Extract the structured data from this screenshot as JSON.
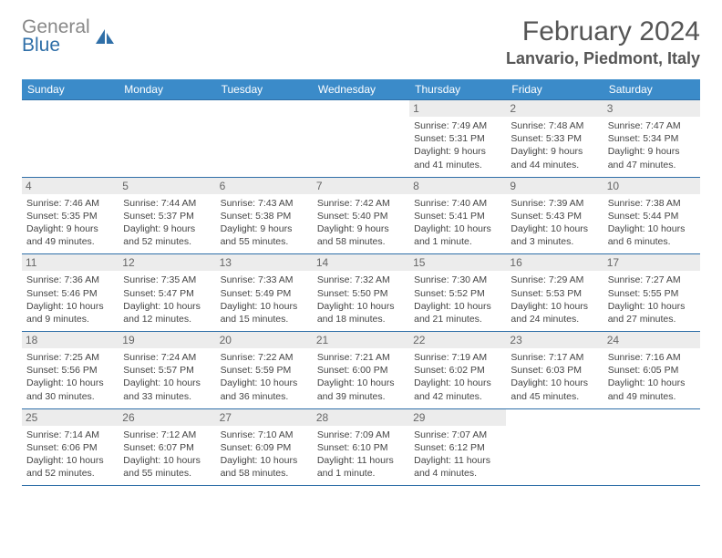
{
  "logo": {
    "textA": "General",
    "textB": "Blue"
  },
  "title": "February 2024",
  "location": "Lanvario, Piedmont, Italy",
  "colors": {
    "header_bg": "#3b8bc9",
    "header_text": "#ffffff",
    "daynum_bg": "#ececec",
    "border": "#2f6fa8",
    "logo_gray": "#888888",
    "logo_blue": "#2f6fa8"
  },
  "day_headers": [
    "Sunday",
    "Monday",
    "Tuesday",
    "Wednesday",
    "Thursday",
    "Friday",
    "Saturday"
  ],
  "weeks": [
    [
      {
        "n": "",
        "sr": "",
        "ss": "",
        "dl": ""
      },
      {
        "n": "",
        "sr": "",
        "ss": "",
        "dl": ""
      },
      {
        "n": "",
        "sr": "",
        "ss": "",
        "dl": ""
      },
      {
        "n": "",
        "sr": "",
        "ss": "",
        "dl": ""
      },
      {
        "n": "1",
        "sr": "Sunrise: 7:49 AM",
        "ss": "Sunset: 5:31 PM",
        "dl": "Daylight: 9 hours and 41 minutes."
      },
      {
        "n": "2",
        "sr": "Sunrise: 7:48 AM",
        "ss": "Sunset: 5:33 PM",
        "dl": "Daylight: 9 hours and 44 minutes."
      },
      {
        "n": "3",
        "sr": "Sunrise: 7:47 AM",
        "ss": "Sunset: 5:34 PM",
        "dl": "Daylight: 9 hours and 47 minutes."
      }
    ],
    [
      {
        "n": "4",
        "sr": "Sunrise: 7:46 AM",
        "ss": "Sunset: 5:35 PM",
        "dl": "Daylight: 9 hours and 49 minutes."
      },
      {
        "n": "5",
        "sr": "Sunrise: 7:44 AM",
        "ss": "Sunset: 5:37 PM",
        "dl": "Daylight: 9 hours and 52 minutes."
      },
      {
        "n": "6",
        "sr": "Sunrise: 7:43 AM",
        "ss": "Sunset: 5:38 PM",
        "dl": "Daylight: 9 hours and 55 minutes."
      },
      {
        "n": "7",
        "sr": "Sunrise: 7:42 AM",
        "ss": "Sunset: 5:40 PM",
        "dl": "Daylight: 9 hours and 58 minutes."
      },
      {
        "n": "8",
        "sr": "Sunrise: 7:40 AM",
        "ss": "Sunset: 5:41 PM",
        "dl": "Daylight: 10 hours and 1 minute."
      },
      {
        "n": "9",
        "sr": "Sunrise: 7:39 AM",
        "ss": "Sunset: 5:43 PM",
        "dl": "Daylight: 10 hours and 3 minutes."
      },
      {
        "n": "10",
        "sr": "Sunrise: 7:38 AM",
        "ss": "Sunset: 5:44 PM",
        "dl": "Daylight: 10 hours and 6 minutes."
      }
    ],
    [
      {
        "n": "11",
        "sr": "Sunrise: 7:36 AM",
        "ss": "Sunset: 5:46 PM",
        "dl": "Daylight: 10 hours and 9 minutes."
      },
      {
        "n": "12",
        "sr": "Sunrise: 7:35 AM",
        "ss": "Sunset: 5:47 PM",
        "dl": "Daylight: 10 hours and 12 minutes."
      },
      {
        "n": "13",
        "sr": "Sunrise: 7:33 AM",
        "ss": "Sunset: 5:49 PM",
        "dl": "Daylight: 10 hours and 15 minutes."
      },
      {
        "n": "14",
        "sr": "Sunrise: 7:32 AM",
        "ss": "Sunset: 5:50 PM",
        "dl": "Daylight: 10 hours and 18 minutes."
      },
      {
        "n": "15",
        "sr": "Sunrise: 7:30 AM",
        "ss": "Sunset: 5:52 PM",
        "dl": "Daylight: 10 hours and 21 minutes."
      },
      {
        "n": "16",
        "sr": "Sunrise: 7:29 AM",
        "ss": "Sunset: 5:53 PM",
        "dl": "Daylight: 10 hours and 24 minutes."
      },
      {
        "n": "17",
        "sr": "Sunrise: 7:27 AM",
        "ss": "Sunset: 5:55 PM",
        "dl": "Daylight: 10 hours and 27 minutes."
      }
    ],
    [
      {
        "n": "18",
        "sr": "Sunrise: 7:25 AM",
        "ss": "Sunset: 5:56 PM",
        "dl": "Daylight: 10 hours and 30 minutes."
      },
      {
        "n": "19",
        "sr": "Sunrise: 7:24 AM",
        "ss": "Sunset: 5:57 PM",
        "dl": "Daylight: 10 hours and 33 minutes."
      },
      {
        "n": "20",
        "sr": "Sunrise: 7:22 AM",
        "ss": "Sunset: 5:59 PM",
        "dl": "Daylight: 10 hours and 36 minutes."
      },
      {
        "n": "21",
        "sr": "Sunrise: 7:21 AM",
        "ss": "Sunset: 6:00 PM",
        "dl": "Daylight: 10 hours and 39 minutes."
      },
      {
        "n": "22",
        "sr": "Sunrise: 7:19 AM",
        "ss": "Sunset: 6:02 PM",
        "dl": "Daylight: 10 hours and 42 minutes."
      },
      {
        "n": "23",
        "sr": "Sunrise: 7:17 AM",
        "ss": "Sunset: 6:03 PM",
        "dl": "Daylight: 10 hours and 45 minutes."
      },
      {
        "n": "24",
        "sr": "Sunrise: 7:16 AM",
        "ss": "Sunset: 6:05 PM",
        "dl": "Daylight: 10 hours and 49 minutes."
      }
    ],
    [
      {
        "n": "25",
        "sr": "Sunrise: 7:14 AM",
        "ss": "Sunset: 6:06 PM",
        "dl": "Daylight: 10 hours and 52 minutes."
      },
      {
        "n": "26",
        "sr": "Sunrise: 7:12 AM",
        "ss": "Sunset: 6:07 PM",
        "dl": "Daylight: 10 hours and 55 minutes."
      },
      {
        "n": "27",
        "sr": "Sunrise: 7:10 AM",
        "ss": "Sunset: 6:09 PM",
        "dl": "Daylight: 10 hours and 58 minutes."
      },
      {
        "n": "28",
        "sr": "Sunrise: 7:09 AM",
        "ss": "Sunset: 6:10 PM",
        "dl": "Daylight: 11 hours and 1 minute."
      },
      {
        "n": "29",
        "sr": "Sunrise: 7:07 AM",
        "ss": "Sunset: 6:12 PM",
        "dl": "Daylight: 11 hours and 4 minutes."
      },
      {
        "n": "",
        "sr": "",
        "ss": "",
        "dl": ""
      },
      {
        "n": "",
        "sr": "",
        "ss": "",
        "dl": ""
      }
    ]
  ]
}
